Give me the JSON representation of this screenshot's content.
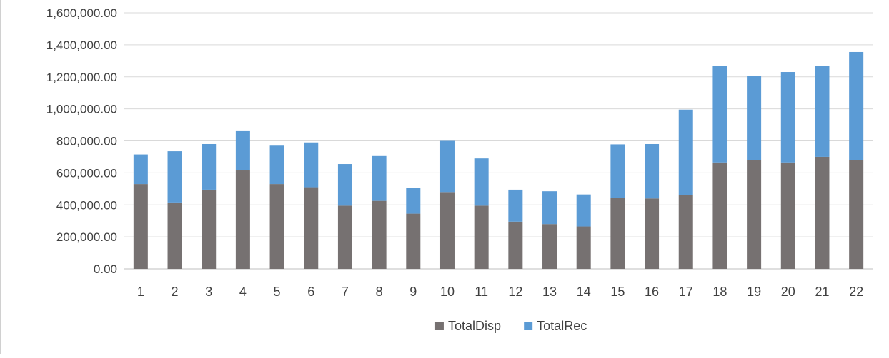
{
  "chart_data": {
    "type": "bar",
    "stacked": true,
    "categories": [
      "1",
      "2",
      "3",
      "4",
      "5",
      "6",
      "7",
      "8",
      "9",
      "10",
      "11",
      "12",
      "13",
      "14",
      "15",
      "16",
      "17",
      "18",
      "19",
      "20",
      "21",
      "22"
    ],
    "series": [
      {
        "name": "TotalDisp",
        "color": "#767171",
        "values": [
          530000,
          415000,
          495000,
          615000,
          530000,
          510000,
          395000,
          425000,
          345000,
          480000,
          395000,
          295000,
          280000,
          265000,
          445000,
          440000,
          460000,
          665000,
          680000,
          665000,
          700000,
          680000
        ]
      },
      {
        "name": "TotalRec",
        "color": "#5B9BD5",
        "values": [
          185000,
          320000,
          285000,
          250000,
          240000,
          280000,
          260000,
          280000,
          160000,
          320000,
          295000,
          200000,
          205000,
          200000,
          333000,
          340000,
          535000,
          605000,
          527000,
          565000,
          570000,
          675000
        ]
      }
    ],
    "y_ticks": [
      "0.00",
      "200,000.00",
      "400,000.00",
      "600,000.00",
      "800,000.00",
      "1,000,000.00",
      "1,200,000.00",
      "1,400,000.00",
      "1,600,000.00"
    ],
    "ylim": [
      0,
      1600000
    ],
    "grid": true,
    "legend_position": "bottom"
  }
}
